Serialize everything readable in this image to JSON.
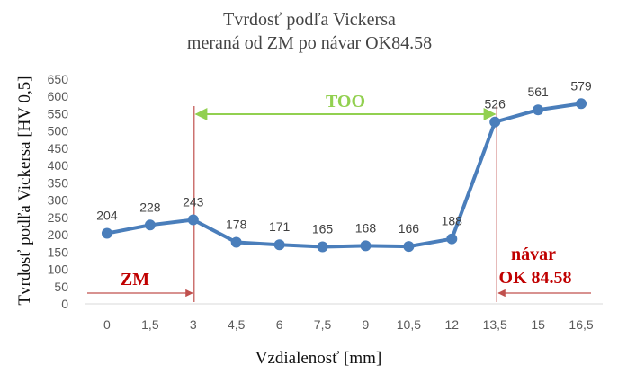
{
  "chart_data": {
    "type": "line",
    "title": "Tvrdosť podľa Vickersa",
    "subtitle": "meraná od ZM po návar OK84.58",
    "xlabel": "Vzdialenosť [mm]",
    "ylabel": "Tvrdosť podľa Vickersa [HV 0,5]",
    "ylim": [
      0,
      650
    ],
    "yticks": [
      "0",
      "50",
      "100",
      "150",
      "200",
      "250",
      "300",
      "350",
      "400",
      "450",
      "500",
      "550",
      "600",
      "650"
    ],
    "categories": [
      "0",
      "1,5",
      "3",
      "4,5",
      "6",
      "7,5",
      "9",
      "10,5",
      "12",
      "13,5",
      "15",
      "16,5"
    ],
    "series": [
      {
        "values": [
          204,
          228,
          243,
          178,
          171,
          165,
          168,
          166,
          188,
          526,
          561,
          579
        ],
        "color": "#4a7ebb"
      }
    ],
    "data_labels": [
      "204",
      "228",
      "243",
      "178",
      "171",
      "165",
      "168",
      "166",
      "188",
      "526",
      "561",
      "579"
    ],
    "grid": false,
    "legend": "none",
    "annotations": {
      "zm": {
        "label": "ZM",
        "color": "#c00000"
      },
      "too": {
        "label": "TOO",
        "color": "#92d050"
      },
      "navar_line1": {
        "label": "návar",
        "color": "#c00000"
      },
      "navar_line2": {
        "label": "OK 84.58",
        "color": "#c00000"
      },
      "boundary_color": "#c0504d"
    }
  }
}
